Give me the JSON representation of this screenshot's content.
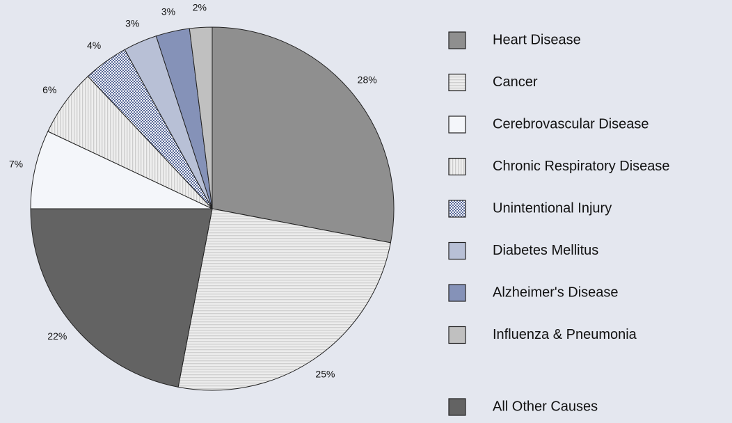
{
  "chart_data": {
    "type": "pie",
    "categories": [
      "Heart Disease",
      "Cancer",
      "All Other Causes",
      "Cerebrovascular Disease",
      "Chronic Respiratory Disease",
      "Unintentional Injury",
      "Diabetes Mellitus",
      "Alzheimer's Disease",
      "Influenza & Pneumonia"
    ],
    "values": [
      28,
      25,
      22,
      7,
      6,
      4,
      3,
      3,
      2
    ],
    "value_labels": [
      "28%",
      "25%",
      "22%",
      "7%",
      "6%",
      "4%",
      "3%",
      "3%",
      "2%"
    ],
    "colors": [
      "#8f8f8f",
      "#e6e6e6",
      "#636363",
      "#f4f6fa",
      "#e8e8e8",
      "#5a6a9a",
      "#b8c0d6",
      "#8592b8",
      "#c0c0c0"
    ],
    "patterns": [
      null,
      "horizontal-stripes",
      null,
      null,
      "vertical-stripes",
      "checker",
      null,
      null,
      null
    ],
    "legend": "right"
  }
}
